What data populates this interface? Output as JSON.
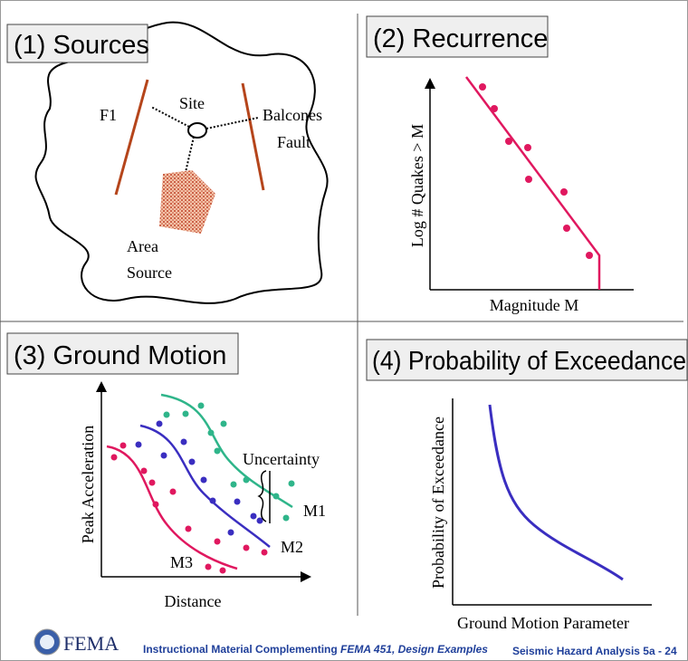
{
  "panels": [
    {
      "title": "(1) Sources",
      "labels": [
        "F1",
        "Site",
        "Balcones",
        "Fault",
        "Area",
        "Source"
      ]
    },
    {
      "title": "(2) Recurrence",
      "y_label": "Log # Quakes > M",
      "x_label": "Magnitude M"
    },
    {
      "title": "(3) Ground Motion",
      "y_label": "Peak Acceleration",
      "x_label": "Distance",
      "labels": [
        "Uncertainty",
        "M1",
        "M2",
        "M3"
      ]
    },
    {
      "title": "(4) Probability of Exceedance",
      "y_label": "Probability of Exceedance",
      "x_label": "Ground Motion Parameter"
    }
  ],
  "footer": {
    "logo": "FEMA",
    "caption": "Instructional Material Complementing ",
    "caption_italic": "FEMA 451, Design Examples",
    "slide": "Seismic Hazard Analysis 5a - 24"
  }
}
